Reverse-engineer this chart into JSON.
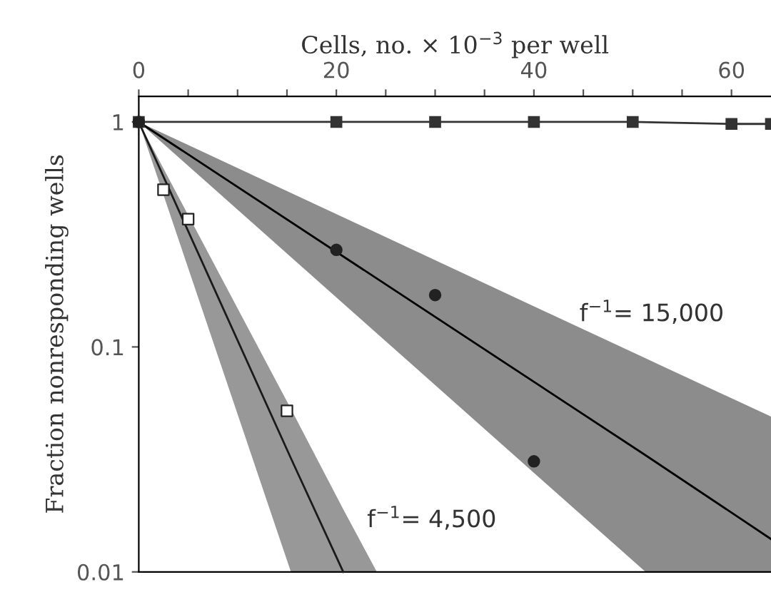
{
  "chart_data": {
    "type": "scatter",
    "xlabel": "Cells, no. × 10$^{−3}$ per well",
    "ylabel": "Fraction nonresponding wells",
    "log": "y",
    "xlim": [
      0,
      64
    ],
    "ylim": [
      0.01,
      1.3
    ],
    "xticks": [
      0,
      {
        "value": 5,
        "label": null
      },
      {
        "value": 10,
        "label": null
      },
      {
        "value": 15,
        "label": null
      },
      20,
      {
        "value": 25,
        "label": null
      },
      {
        "value": 30,
        "label": null
      },
      {
        "value": 35,
        "label": null
      },
      40,
      {
        "value": 45,
        "label": null
      },
      {
        "value": 50,
        "label": null
      },
      {
        "value": 55,
        "label": null
      },
      60
    ],
    "yticks": [
      0.01,
      0.1,
      1
    ],
    "grid": false,
    "legend": false,
    "series": [
      {
        "type": "line",
        "color": "#000000",
        "marker": "none",
        "x": [
          0,
          51.3,
          64
        ],
        "values": [
          1,
          0.033,
          0.014
        ],
        "lower": [
          1,
          0.01,
          0.01
        ],
        "upper": [
          1,
          0.089,
          0.049
        ]
      },
      {
        "type": "line",
        "color": "#1a1a1a",
        "marker": "none",
        "x": [
          0,
          15.4,
          20.7,
          24.1
        ],
        "values": [
          1,
          0.032,
          0.01,
          null
        ],
        "lower": [
          1,
          0.01,
          0.01,
          0.01
        ],
        "upper": [
          1,
          0.053,
          0.019,
          0.01
        ]
      },
      {
        "type": "line",
        "color": "#333333",
        "marker": "square",
        "x": [
          0,
          20,
          30,
          40,
          50,
          60,
          64
        ],
        "values": [
          1,
          1,
          1,
          1,
          1,
          0.98,
          0.98
        ]
      },
      {
        "color": "#222222",
        "marker": "circle",
        "x": [
          0,
          20,
          30,
          40
        ],
        "values": [
          1,
          0.27,
          0.17,
          0.031
        ]
      },
      {
        "color": "#ffffff",
        "marker": "square",
        "x": [
          2.5,
          5,
          15
        ],
        "values": [
          0.5,
          0.37,
          0.052
        ]
      }
    ],
    "annotations": [
      {
        "text": "f$^{−1}$= 15,000",
        "x": 43,
        "y": 0.14
      },
      {
        "text": "f$^{−1}$= 4,500",
        "x": 21.5,
        "y": 0.017
      }
    ]
  }
}
